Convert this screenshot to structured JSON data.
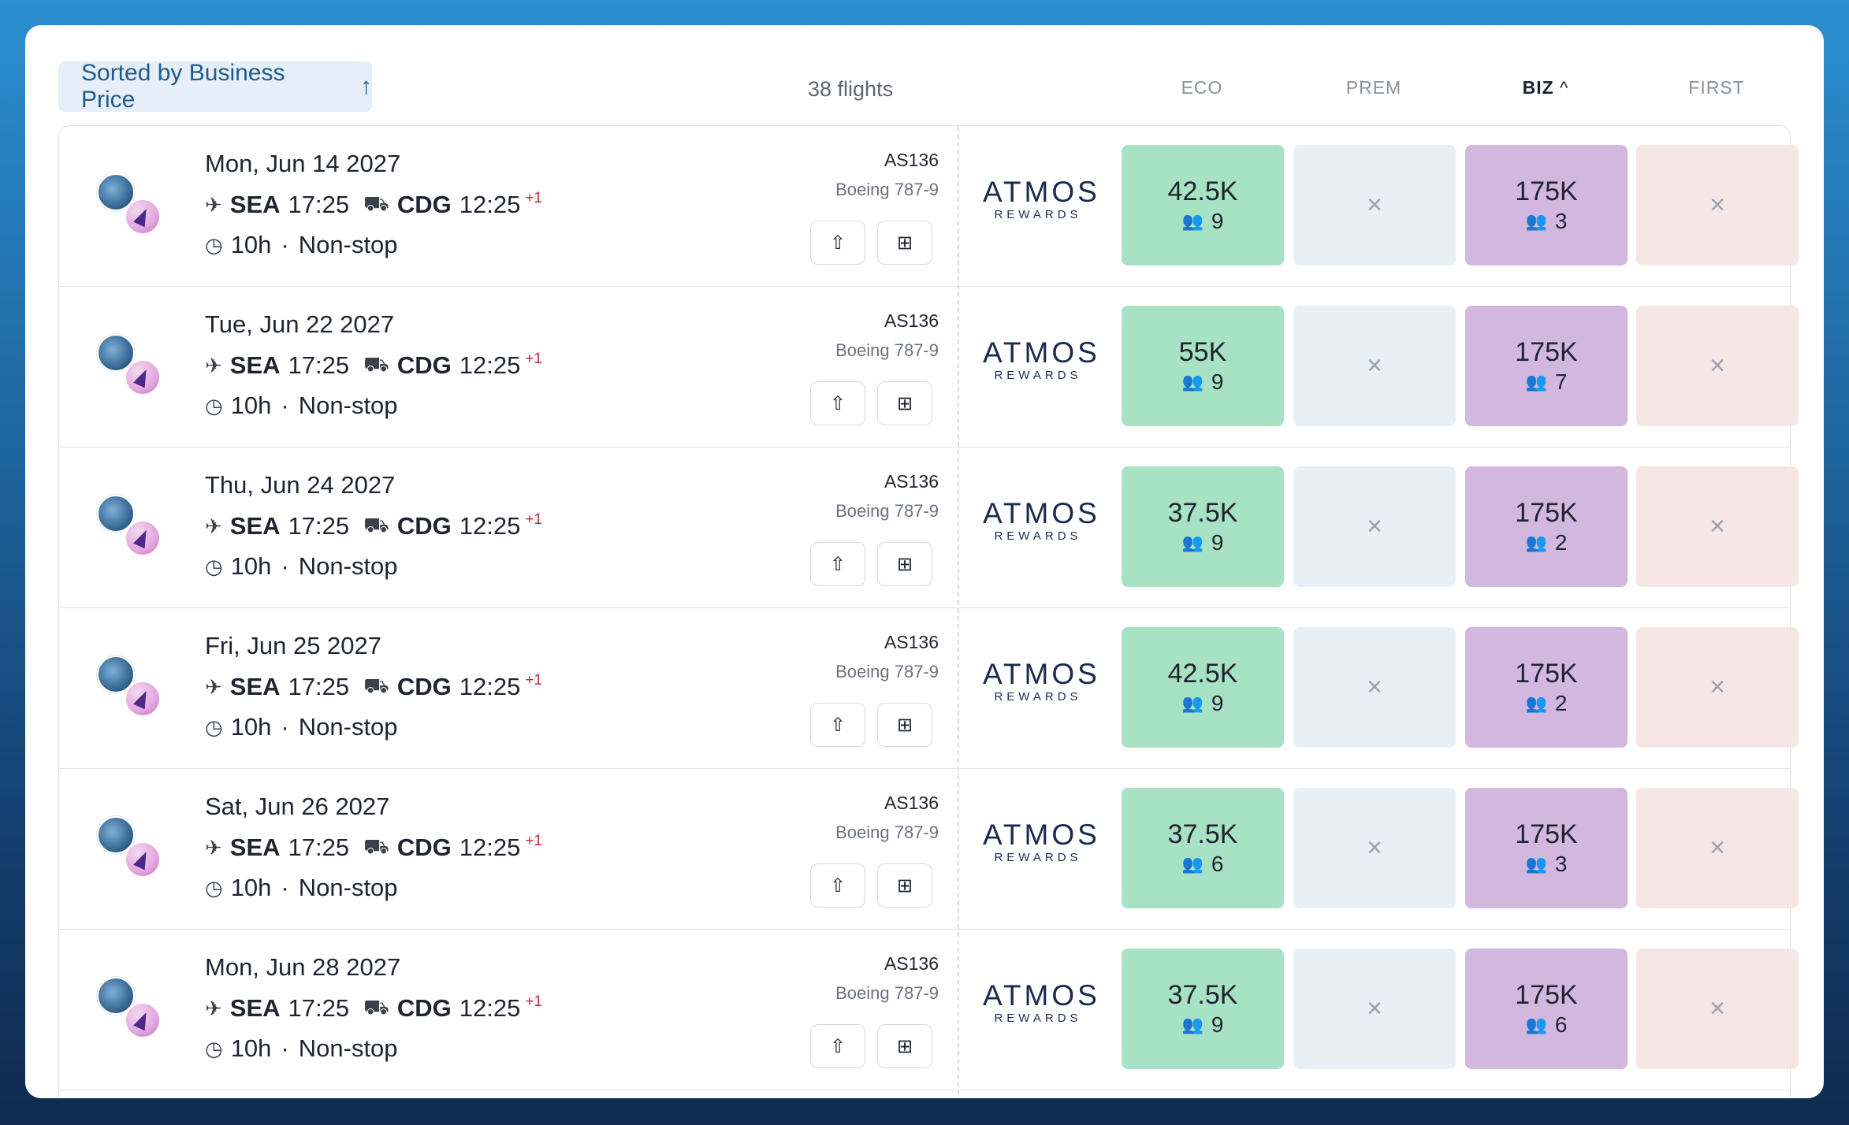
{
  "header": {
    "sort_label": "Sorted by Business Price",
    "sort_arrow": "↑",
    "flight_count": "38 flights",
    "columns": {
      "eco": "ECO",
      "prem": "PREM",
      "biz": "BIZ",
      "biz_indicator": "^",
      "first": "FIRST"
    }
  },
  "program": {
    "name": "ATMOS",
    "sub": "REWARDS"
  },
  "unavailable_symbol": "×",
  "icons": {
    "depart": "plane-departure-icon",
    "arrive": "plane-arrival-icon",
    "clock": "clock-icon",
    "share": "share-icon",
    "add": "add-square-icon",
    "seats": "people-icon"
  },
  "colors": {
    "eco": "#a8e2c4",
    "prem": "#e8eff5",
    "biz": "#d2b7df",
    "first": "#f7e6e6",
    "plus_day": "#c8283a"
  },
  "flights": [
    {
      "date": "Mon, Jun 14 2027",
      "from_code": "SEA",
      "dep": "17:25",
      "to_code": "CDG",
      "arr": "12:25",
      "plus": "+1",
      "duration": "10h",
      "dot": "·",
      "stops": "Non-stop",
      "flight_no": "AS136",
      "aircraft": "Boeing 787-9",
      "eco_price": "42.5K",
      "eco_seats": "9",
      "biz_price": "175K",
      "biz_seats": "3"
    },
    {
      "date": "Tue, Jun 22 2027",
      "from_code": "SEA",
      "dep": "17:25",
      "to_code": "CDG",
      "arr": "12:25",
      "plus": "+1",
      "duration": "10h",
      "dot": "·",
      "stops": "Non-stop",
      "flight_no": "AS136",
      "aircraft": "Boeing 787-9",
      "eco_price": "55K",
      "eco_seats": "9",
      "biz_price": "175K",
      "biz_seats": "7"
    },
    {
      "date": "Thu, Jun 24 2027",
      "from_code": "SEA",
      "dep": "17:25",
      "to_code": "CDG",
      "arr": "12:25",
      "plus": "+1",
      "duration": "10h",
      "dot": "·",
      "stops": "Non-stop",
      "flight_no": "AS136",
      "aircraft": "Boeing 787-9",
      "eco_price": "37.5K",
      "eco_seats": "9",
      "biz_price": "175K",
      "biz_seats": "2"
    },
    {
      "date": "Fri, Jun 25 2027",
      "from_code": "SEA",
      "dep": "17:25",
      "to_code": "CDG",
      "arr": "12:25",
      "plus": "+1",
      "duration": "10h",
      "dot": "·",
      "stops": "Non-stop",
      "flight_no": "AS136",
      "aircraft": "Boeing 787-9",
      "eco_price": "42.5K",
      "eco_seats": "9",
      "biz_price": "175K",
      "biz_seats": "2"
    },
    {
      "date": "Sat, Jun 26 2027",
      "from_code": "SEA",
      "dep": "17:25",
      "to_code": "CDG",
      "arr": "12:25",
      "plus": "+1",
      "duration": "10h",
      "dot": "·",
      "stops": "Non-stop",
      "flight_no": "AS136",
      "aircraft": "Boeing 787-9",
      "eco_price": "37.5K",
      "eco_seats": "6",
      "biz_price": "175K",
      "biz_seats": "3"
    },
    {
      "date": "Mon, Jun 28 2027",
      "from_code": "SEA",
      "dep": "17:25",
      "to_code": "CDG",
      "arr": "12:25",
      "plus": "+1",
      "duration": "10h",
      "dot": "·",
      "stops": "Non-stop",
      "flight_no": "AS136",
      "aircraft": "Boeing 787-9",
      "eco_price": "37.5K",
      "eco_seats": "9",
      "biz_price": "175K",
      "biz_seats": "6"
    }
  ]
}
